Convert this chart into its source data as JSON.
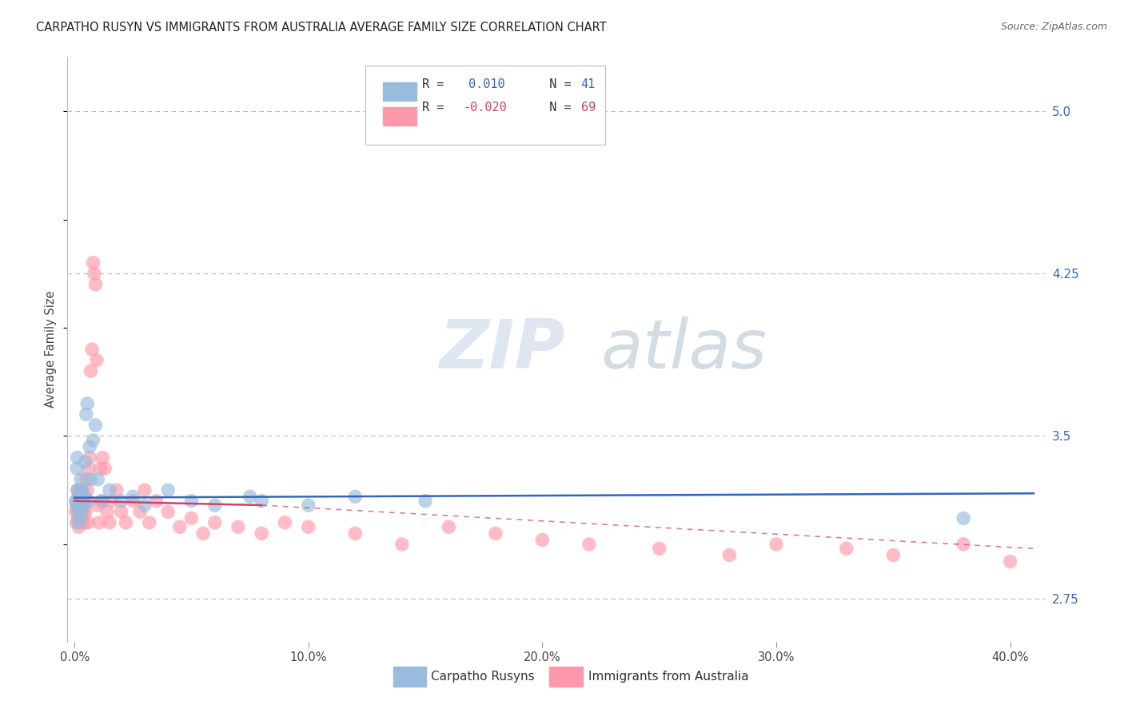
{
  "title": "CARPATHO RUSYN VS IMMIGRANTS FROM AUSTRALIA AVERAGE FAMILY SIZE CORRELATION CHART",
  "source": "Source: ZipAtlas.com",
  "ylabel": "Average Family Size",
  "blue_color": "#99BBDD",
  "pink_color": "#FF99AA",
  "blue_line_color": "#3366BB",
  "pink_line_color": "#CC4466",
  "ytick_color": "#3366BB",
  "grid_color": "#BBBBCC",
  "spine_color": "#BBBBCC",
  "blue_points_x": [
    0.05,
    0.08,
    0.1,
    0.12,
    0.14,
    0.15,
    0.16,
    0.18,
    0.2,
    0.22,
    0.24,
    0.26,
    0.28,
    0.3,
    0.32,
    0.35,
    0.38,
    0.4,
    0.45,
    0.5,
    0.55,
    0.6,
    0.65,
    0.7,
    0.8,
    0.9,
    1.0,
    1.2,
    1.5,
    2.0,
    2.5,
    3.0,
    4.0,
    5.0,
    6.0,
    7.5,
    8.0,
    10.0,
    12.0,
    15.0,
    38.0
  ],
  "blue_points_y": [
    3.2,
    3.18,
    3.35,
    3.4,
    3.25,
    3.15,
    3.1,
    3.22,
    3.2,
    3.18,
    3.25,
    3.12,
    3.3,
    3.2,
    3.16,
    3.25,
    3.18,
    3.22,
    3.38,
    3.6,
    3.65,
    3.2,
    3.45,
    3.3,
    3.48,
    3.55,
    3.3,
    3.2,
    3.25,
    3.2,
    3.22,
    3.18,
    3.25,
    3.2,
    3.18,
    3.22,
    3.2,
    3.18,
    3.22,
    3.2,
    3.12
  ],
  "pink_points_x": [
    0.05,
    0.08,
    0.1,
    0.12,
    0.14,
    0.16,
    0.18,
    0.2,
    0.22,
    0.25,
    0.28,
    0.3,
    0.32,
    0.35,
    0.38,
    0.4,
    0.42,
    0.45,
    0.48,
    0.5,
    0.55,
    0.58,
    0.6,
    0.65,
    0.7,
    0.75,
    0.8,
    0.85,
    0.9,
    0.95,
    1.0,
    1.05,
    1.1,
    1.15,
    1.2,
    1.3,
    1.4,
    1.5,
    1.6,
    1.8,
    2.0,
    2.2,
    2.5,
    2.8,
    3.0,
    3.2,
    3.5,
    4.0,
    4.5,
    5.0,
    5.5,
    6.0,
    7.0,
    8.0,
    9.0,
    10.0,
    12.0,
    14.0,
    16.0,
    18.0,
    20.0,
    22.0,
    25.0,
    28.0,
    30.0,
    33.0,
    35.0,
    38.0,
    40.0
  ],
  "pink_points_y": [
    3.15,
    3.1,
    3.2,
    3.25,
    3.18,
    3.12,
    3.08,
    3.22,
    3.15,
    3.18,
    3.1,
    3.25,
    3.12,
    3.2,
    3.15,
    3.1,
    3.18,
    3.22,
    3.15,
    3.3,
    3.25,
    3.1,
    3.35,
    3.4,
    3.8,
    3.9,
    4.3,
    4.25,
    4.2,
    3.85,
    3.18,
    3.1,
    3.35,
    3.2,
    3.4,
    3.35,
    3.15,
    3.1,
    3.2,
    3.25,
    3.15,
    3.1,
    3.2,
    3.15,
    3.25,
    3.1,
    3.2,
    3.15,
    3.08,
    3.12,
    3.05,
    3.1,
    3.08,
    3.05,
    3.1,
    3.08,
    3.05,
    3.0,
    3.08,
    3.05,
    3.02,
    3.0,
    2.98,
    2.95,
    3.0,
    2.98,
    2.95,
    3.0,
    2.92
  ],
  "ylim": [
    2.55,
    5.25
  ],
  "xlim_pct": [
    -0.3,
    41.5
  ],
  "yticks": [
    2.75,
    3.5,
    4.25,
    5.0
  ],
  "xticks": [
    0,
    10,
    20,
    30,
    40
  ],
  "xtick_labels": [
    "0.0%",
    "10.0%",
    "20.0%",
    "30.0%",
    "40.0%"
  ],
  "blue_line_y_start": 3.215,
  "blue_line_y_end": 3.235,
  "pink_line_y_start": 3.2,
  "pink_line_y_end": 3.1,
  "pink_dashed_y_start": 3.1,
  "pink_dashed_y_end": 2.98
}
